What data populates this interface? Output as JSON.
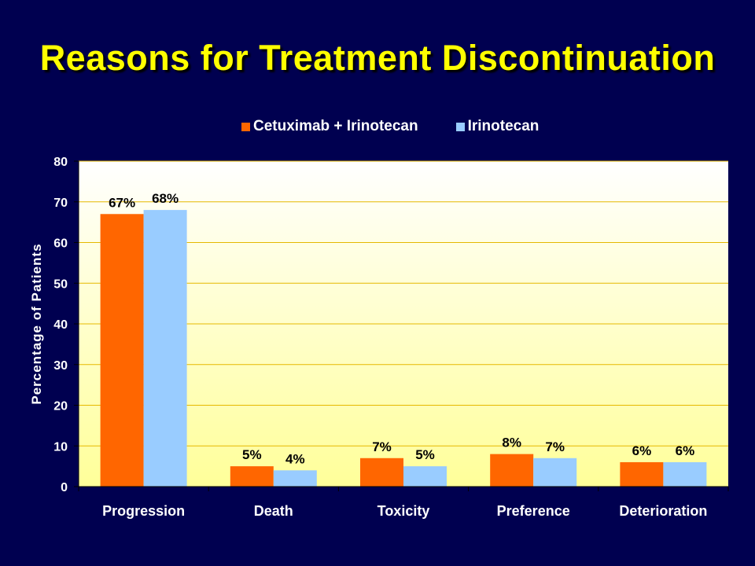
{
  "slide": {
    "title": "Reasons for Treatment Discontinuation"
  },
  "colors": {
    "background": "#000050",
    "title": "#FFFF00",
    "series_1": "#FF6600",
    "series_2": "#99CCFF",
    "plot_top": "#FFFFFF",
    "plot_bottom": "#FFFF99",
    "gridline": "#E5B800"
  },
  "chart_data": {
    "type": "bar",
    "title": "",
    "xlabel": "",
    "ylabel": "Percentage of Patients",
    "categories": [
      "Progression",
      "Death",
      "Toxicity",
      "Preference",
      "Deterioration"
    ],
    "series": [
      {
        "name": "Cetuximab + Irinotecan",
        "values": [
          67,
          5,
          7,
          8,
          6
        ],
        "labels": [
          "67%",
          "5%",
          "7%",
          "8%",
          "6%"
        ]
      },
      {
        "name": "Irinotecan",
        "values": [
          68,
          4,
          5,
          7,
          6
        ],
        "labels": [
          "68%",
          "4%",
          "5%",
          "7%",
          "6%"
        ]
      }
    ],
    "ylim": [
      0,
      80
    ],
    "yticks": [
      0,
      10,
      20,
      30,
      40,
      50,
      60,
      70,
      80
    ],
    "grid": true,
    "legend_position": "top"
  }
}
